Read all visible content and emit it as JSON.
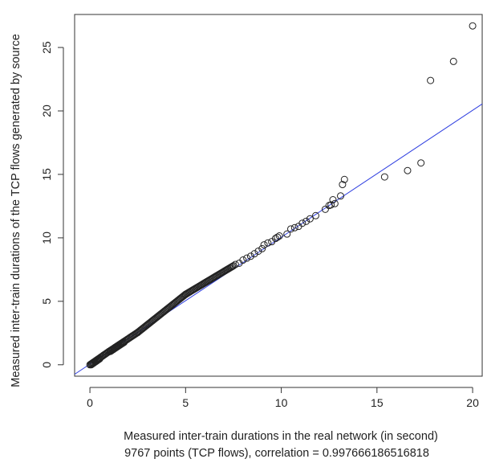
{
  "chart_data": {
    "type": "scatter",
    "title": "",
    "xlabel": "Measured inter-train durations in the real network (in second)",
    "ylabel": "Measured inter-train durations of the TCP flows generated by source",
    "subtitle": "9767 points (TCP flows), correlation =  0.997666186516818",
    "xlim": [
      -0.8,
      20.5
    ],
    "ylim": [
      -0.9,
      27.6
    ],
    "xticks": [
      0,
      5,
      10,
      15,
      20
    ],
    "yticks": [
      0,
      5,
      10,
      15,
      20,
      25
    ],
    "grid": false,
    "legend": "none",
    "point_color": "#222222",
    "fit_line": {
      "color": "#2f3fe0",
      "slope": 1.0,
      "intercept": 0.05
    },
    "dense_segments": [
      {
        "x": [
          0.0,
          1.0
        ],
        "y": [
          0.0,
          1.05
        ]
      },
      {
        "x": [
          1.0,
          2.5
        ],
        "y": [
          1.05,
          2.55
        ]
      },
      {
        "x": [
          2.5,
          5.0
        ],
        "y": [
          2.55,
          5.55
        ]
      },
      {
        "x": [
          5.0,
          7.5
        ],
        "y": [
          5.55,
          7.8
        ]
      }
    ],
    "points": [
      [
        7.6,
        7.9
      ],
      [
        7.8,
        8.0
      ],
      [
        8.0,
        8.25
      ],
      [
        8.2,
        8.4
      ],
      [
        8.4,
        8.55
      ],
      [
        8.6,
        8.75
      ],
      [
        8.8,
        8.95
      ],
      [
        9.0,
        9.15
      ],
      [
        9.1,
        9.45
      ],
      [
        9.3,
        9.6
      ],
      [
        9.5,
        9.7
      ],
      [
        9.7,
        9.95
      ],
      [
        9.8,
        10.05
      ],
      [
        9.9,
        10.15
      ],
      [
        10.3,
        10.3
      ],
      [
        10.5,
        10.7
      ],
      [
        10.7,
        10.8
      ],
      [
        10.9,
        10.9
      ],
      [
        11.1,
        11.15
      ],
      [
        11.3,
        11.3
      ],
      [
        11.5,
        11.5
      ],
      [
        11.8,
        11.75
      ],
      [
        12.3,
        12.25
      ],
      [
        12.5,
        12.55
      ],
      [
        12.6,
        12.6
      ],
      [
        12.7,
        13.0
      ],
      [
        12.8,
        12.7
      ],
      [
        13.1,
        13.3
      ],
      [
        13.2,
        14.2
      ],
      [
        13.3,
        14.6
      ],
      [
        15.4,
        14.8
      ],
      [
        16.6,
        15.3
      ],
      [
        17.3,
        15.9
      ],
      [
        17.8,
        22.4
      ],
      [
        19.0,
        23.9
      ],
      [
        20.0,
        26.7
      ]
    ]
  }
}
